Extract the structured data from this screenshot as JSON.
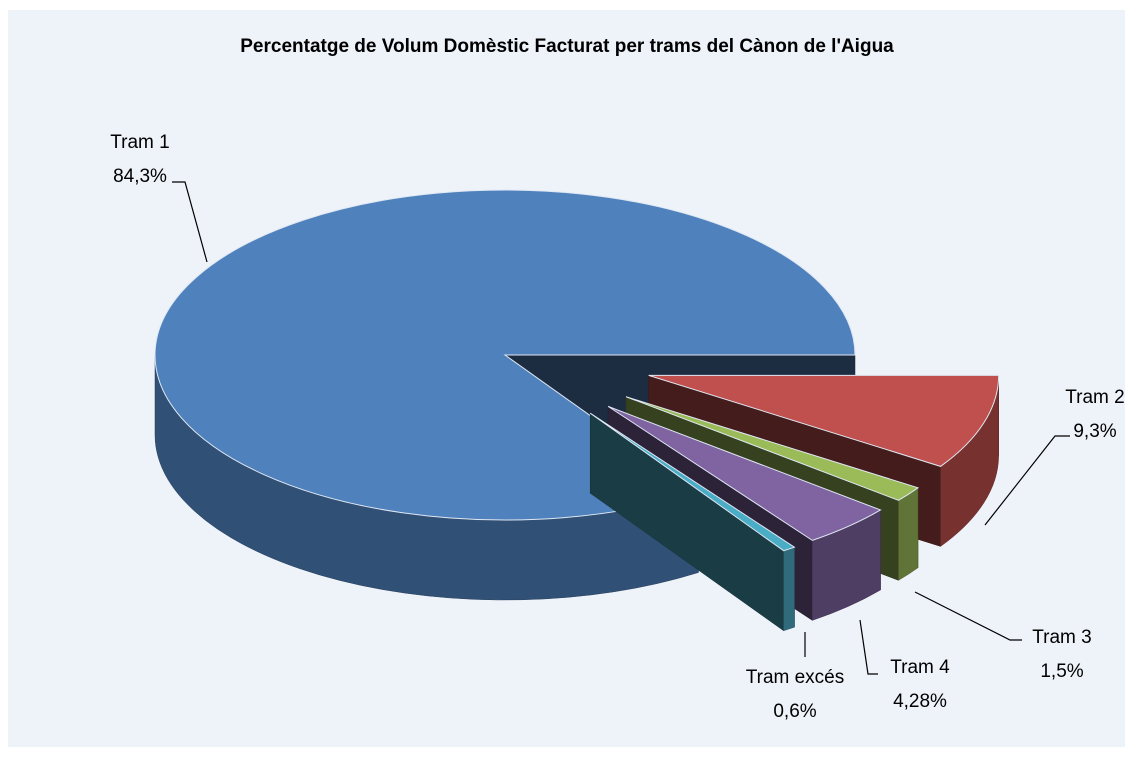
{
  "chart_data": {
    "type": "pie",
    "title": "Percentatge de Volum Domèstic Facturat per trams del Cànon de l'Aigua",
    "categories": [
      "Tram 1",
      "Tram 2",
      "Tram 3",
      "Tram 4",
      "Tram excés"
    ],
    "values": [
      84.3,
      9.3,
      1.5,
      4.28,
      0.6
    ],
    "value_labels": [
      "84,3%",
      "9,3%",
      "1,5%",
      "4,28%",
      "0,6%"
    ],
    "colors": [
      "#4f81bd",
      "#c0504d",
      "#9bbb59",
      "#8064a2",
      "#4bacc6"
    ]
  }
}
